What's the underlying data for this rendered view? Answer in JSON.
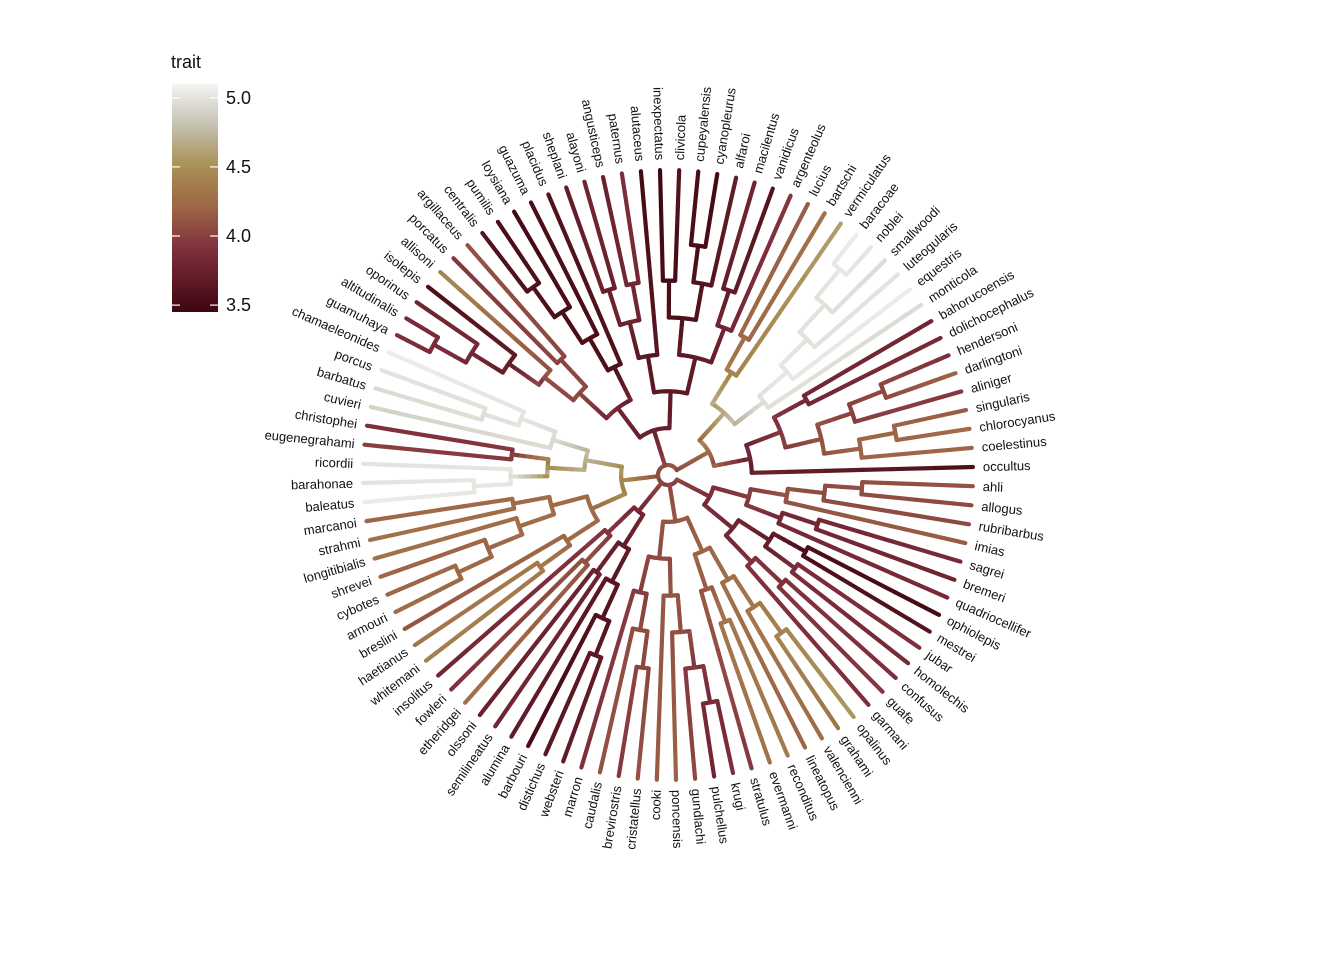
{
  "chart_data": {
    "type": "circular-phylogeny",
    "tip_labels": [
      "occultus",
      "coelestinus",
      "chlorocyanus",
      "singularis",
      "aliniger",
      "darlingtoni",
      "hendersoni",
      "dolichocephalus",
      "bahorucoensis",
      "monticola",
      "equestris",
      "luteogularis",
      "smallwoodi",
      "noblei",
      "baracoae",
      "vermiculatus",
      "bartschi",
      "lucius",
      "argenteolus",
      "vanidicus",
      "macilentus",
      "alfaroi",
      "cyanopleurus",
      "cupeyalensis",
      "clivicola",
      "inexpectatus",
      "alutaceus",
      "paternus",
      "angusticeps",
      "alayoni",
      "sheplani",
      "placidus",
      "guazuma",
      "loysiana",
      "pumilis",
      "centralis",
      "argillaceus",
      "porcatus",
      "allisoni",
      "isolepis",
      "oporinus",
      "altitudinalis",
      "guamuhaya",
      "chamaeleonides",
      "porcus",
      "barbatus",
      "cuvieri",
      "christophei",
      "eugenegrahami",
      "ricordii",
      "barahonae",
      "baleatus",
      "marcanoi",
      "strahmi",
      "longitibialis",
      "shrevei",
      "cybotes",
      "armouri",
      "breslini",
      "haetianus",
      "whitemani",
      "insolitus",
      "fowleri",
      "etheridgei",
      "olssoni",
      "semilineatus",
      "alumina",
      "barbouri",
      "distichus",
      "websteri",
      "marron",
      "caudalis",
      "brevirostris",
      "cristatellus",
      "cooki",
      "poncensis",
      "gundlachi",
      "pulchellus",
      "krugi",
      "stratulus",
      "evermanni",
      "reconditus",
      "lineatopus",
      "valencienni",
      "grahami",
      "opalinus",
      "garmani",
      "guafe",
      "confusus",
      "homolechis",
      "jubar",
      "mestrei",
      "ophiolepis",
      "quadriocellifer",
      "bremeri",
      "sagrei",
      "imias",
      "rubribarbus",
      "allogus",
      "ahli"
    ],
    "trait_name": "trait",
    "trait_range": [
      3.45,
      5.1
    ],
    "colorbar_ticks": [
      {
        "value": 3.5,
        "label": "3.5"
      },
      {
        "value": 4.0,
        "label": "4.0"
      },
      {
        "value": 4.5,
        "label": "4.5"
      },
      {
        "value": 5.0,
        "label": "5.0"
      }
    ],
    "color_stops": [
      {
        "value": 3.45,
        "color": "#3d0610"
      },
      {
        "value": 3.9,
        "color": "#7e2e3c"
      },
      {
        "value": 4.2,
        "color": "#9e6546"
      },
      {
        "value": 4.5,
        "color": "#a88f52"
      },
      {
        "value": 4.8,
        "color": "#c4c0b0"
      },
      {
        "value": 5.1,
        "color": "#f4f4f4"
      }
    ],
    "tree": [
      "clade",
      [
        "clade",
        [
          "clade",
          [
            "tip",
            "occultus",
            3.55
          ],
          [
            "clade",
            [
              "clade",
              [
                "clade",
                [
                  "tip",
                  "coelestinus",
                  4.2
                ],
                [
                  "clade",
                  [
                    "tip",
                    "chlorocyanus",
                    4.25
                  ],
                  [
                    "tip",
                    "singularis",
                    4.15
                  ]
                ]
              ],
              [
                "clade",
                [
                  "tip",
                  "aliniger",
                  3.95
                ],
                [
                  "clade",
                  [
                    "tip",
                    "darlingtoni",
                    4.2
                  ],
                  [
                    "tip",
                    "hendersoni",
                    3.9
                  ]
                ]
              ]
            ],
            [
              "clade",
              [
                "tip",
                "dolichocephalus",
                3.85
              ],
              [
                "tip",
                "bahorucoensis",
                3.8
              ]
            ]
          ]
        ],
        [
          "clade",
          [
            "clade",
            [
              "tip",
              "monticola",
              4.95
            ],
            [
              "clade",
              [
                "tip",
                "equestris",
                5.05
              ],
              [
                "clade",
                [
                  "tip",
                  "luteogularis",
                  5.0
                ],
                [
                  "clade",
                  [
                    "tip",
                    "smallwoodi",
                    4.95
                  ],
                  [
                    "clade",
                    [
                      "tip",
                      "noblei",
                      5.0
                    ],
                    [
                      "tip",
                      "baracoae",
                      5.05
                    ]
                  ]
                ]
              ]
            ]
          ],
          [
            "clade",
            [
              "tip",
              "vermiculatus",
              4.6
            ],
            [
              "clade",
              [
                "tip",
                "bartschi",
                4.3
              ],
              [
                "tip",
                "lucius",
                4.15
              ]
            ]
          ]
        ]
      ],
      [
        "clade",
        [
          "clade",
          [
            "clade",
            [
              "clade",
              [
                "tip",
                "argenteolus",
                3.95
              ],
              [
                "clade",
                [
                  "tip",
                  "vanidicus",
                  3.6
                ],
                [
                  "tip",
                  "macilentus",
                  3.8
                ]
              ]
            ],
            [
              "clade",
              [
                "clade",
                [
                  "tip",
                  "alfaroi",
                  3.7
                ],
                [
                  "clade",
                  [
                    "tip",
                    "cyanopleurus",
                    3.5
                  ],
                  [
                    "tip",
                    "cupeyalensis",
                    3.55
                  ]
                ]
              ],
              [
                "clade",
                [
                  "tip",
                  "clivicola",
                  3.6
                ],
                [
                  "tip",
                  "inexpectatus",
                  3.45
                ]
              ]
            ]
          ],
          [
            "clade",
            [
              "tip",
              "alutaceus",
              3.5
            ],
            [
              "clade",
              [
                "clade",
                [
                  "tip",
                  "paternus",
                  3.9
                ],
                [
                  "tip",
                  "angusticeps",
                  3.75
                ]
              ],
              [
                "clade",
                [
                  "tip",
                  "alayoni",
                  3.8
                ],
                [
                  "tip",
                  "sheplani",
                  3.7
                ]
              ]
            ]
          ]
        ],
        [
          "clade",
          [
            "clade",
            [
              "tip",
              "placidus",
              3.6
            ],
            [
              "clade",
              [
                "tip",
                "guazuma",
                3.55
              ],
              [
                "clade",
                [
                  "tip",
                  "loysiana",
                  3.5
                ],
                [
                  "clade",
                  [
                    "tip",
                    "pumilis",
                    3.55
                  ],
                  [
                    "tip",
                    "centralis",
                    3.6
                  ]
                ]
              ]
            ]
          ],
          [
            "clade",
            [
              "clade",
              [
                "tip",
                "argillaceus",
                4.1
              ],
              [
                "tip",
                "porcatus",
                3.95
              ]
            ],
            [
              "clade",
              [
                "tip",
                "allisoni",
                4.45
              ],
              [
                "clade",
                [
                  "tip",
                  "isolepis",
                  3.55
                ],
                [
                  "clade",
                  [
                    "tip",
                    "oporinus",
                    3.8
                  ],
                  [
                    "clade",
                    [
                      "tip",
                      "altitudinalis",
                      3.85
                    ],
                    [
                      "tip",
                      "guamuhaya",
                      3.9
                    ]
                  ]
                ]
              ]
            ]
          ]
        ]
      ],
      [
        "clade",
        [
          "clade",
          [
            "clade",
            [
              "clade",
              [
                "tip",
                "chamaeleonides",
                5.05
              ],
              [
                "clade",
                [
                  "tip",
                  "porcus",
                  5.0
                ],
                [
                  "tip",
                  "barbatus",
                  4.95
                ]
              ]
            ],
            [
              "tip",
              "cuvieri",
              4.9
            ]
          ],
          [
            "clade",
            [
              "clade",
              [
                "tip",
                "christophei",
                3.9
              ],
              [
                "tip",
                "eugenegrahami",
                4.0
              ]
            ],
            [
              "clade",
              [
                "tip",
                "ricordii",
                5.0
              ],
              [
                "clade",
                [
                  "tip",
                  "barahonae",
                  5.0
                ],
                [
                  "tip",
                  "baleatus",
                  5.05
                ]
              ]
            ]
          ]
        ],
        [
          "clade",
          [
            "clade",
            [
              "clade",
              [
                "tip",
                "marcanoi",
                4.2
              ],
              [
                "tip",
                "strahmi",
                4.3
              ]
            ],
            [
              "clade",
              [
                "tip",
                "longitibialis",
                4.3
              ],
              [
                "clade",
                [
                  "tip",
                  "shrevei",
                  4.2
                ],
                [
                  "clade",
                  [
                    "tip",
                    "cybotes",
                    4.2
                  ],
                  [
                    "tip",
                    "armouri",
                    4.25
                  ]
                ]
              ]
            ]
          ],
          [
            "clade",
            [
              "tip",
              "breslini",
              4.1
            ],
            [
              "clade",
              [
                "tip",
                "haetianus",
                4.3
              ],
              [
                "tip",
                "whitemani",
                4.4
              ]
            ]
          ]
        ]
      ],
      [
        "clade",
        [
          "clade",
          [
            "tip",
            "insolitus",
            3.8
          ],
          [
            "clade",
            [
              "tip",
              "fowleri",
              3.9
            ],
            [
              "tip",
              "etheridgei",
              4.3
            ]
          ]
        ],
        [
          "clade",
          [
            "clade",
            [
              "tip",
              "olssoni",
              3.75
            ],
            [
              "tip",
              "semilineatus",
              3.8
            ]
          ],
          [
            "clade",
            [
              "tip",
              "alumina",
              3.7
            ],
            [
              "clade",
              [
                "tip",
                "barbouri",
                3.5
              ],
              [
                "clade",
                [
                  "tip",
                  "distichus",
                  3.65
                ],
                [
                  "tip",
                  "websteri",
                  3.7
                ]
              ]
            ]
          ]
        ]
      ],
      [
        "clade",
        [
          "clade",
          [
            "clade",
            [
              "tip",
              "marron",
              3.9
            ],
            [
              "clade",
              [
                "tip",
                "caudalis",
                4.1
              ],
              [
                "clade",
                [
                  "tip",
                  "brevirostris",
                  3.95
                ],
                [
                  "tip",
                  "cristatellus",
                  4.1
                ]
              ]
            ]
          ],
          [
            "clade",
            [
              "tip",
              "cooki",
              4.15
            ],
            [
              "clade",
              [
                "tip",
                "poncensis",
                4.2
              ],
              [
                "clade",
                [
                  "tip",
                  "gundlachi",
                  4.05
                ],
                [
                  "clade",
                  [
                    "tip",
                    "pulchellus",
                    3.8
                  ],
                  [
                    "tip",
                    "krugi",
                    3.9
                  ]
                ]
              ]
            ]
          ]
        ],
        [
          "clade",
          [
            "clade",
            [
              "tip",
              "stratulus",
              3.95
            ],
            [
              "clade",
              [
                "tip",
                "evermanni",
                4.3
              ],
              [
                "tip",
                "reconditus",
                4.35
              ]
            ]
          ],
          [
            "clade",
            [
              "tip",
              "lineatopus",
              4.2
            ],
            [
              "clade",
              [
                "tip",
                "valencienni",
                4.25
              ],
              [
                "clade",
                [
                  "tip",
                  "grahami",
                  4.3
                ],
                [
                  "tip",
                  "opalinus",
                  4.55
                ]
              ]
            ]
          ]
        ]
      ],
      [
        "clade",
        [
          "clade",
          [
            "clade",
            [
              "tip",
              "garmani",
              3.9
            ],
            [
              "clade",
              [
                "tip",
                "guafe",
                3.95
              ],
              [
                "tip",
                "confusus",
                3.9
              ]
            ]
          ],
          [
            "clade",
            [
              "clade",
              [
                "tip",
                "homolechis",
                3.85
              ],
              [
                "tip",
                "jubar",
                3.9
              ]
            ],
            [
              "clade",
              [
                "tip",
                "mestrei",
                3.6
              ],
              [
                "tip",
                "ophiolepis",
                3.5
              ]
            ]
          ]
        ],
        [
          "clade",
          [
            "clade",
            [
              "tip",
              "quadriocellifer",
              3.85
            ],
            [
              "clade",
              [
                "tip",
                "bremeri",
                3.8
              ],
              [
                "tip",
                "sagrei",
                3.85
              ]
            ]
          ],
          [
            "clade",
            [
              "tip",
              "imias",
              4.15
            ],
            [
              "clade",
              [
                "tip",
                "rubribarbus",
                4.05
              ],
              [
                "clade",
                [
                  "tip",
                  "allogus",
                  4.05
                ],
                [
                  "tip",
                  "ahli",
                  4.1
                ]
              ]
            ]
          ]
        ]
      ]
    ]
  }
}
